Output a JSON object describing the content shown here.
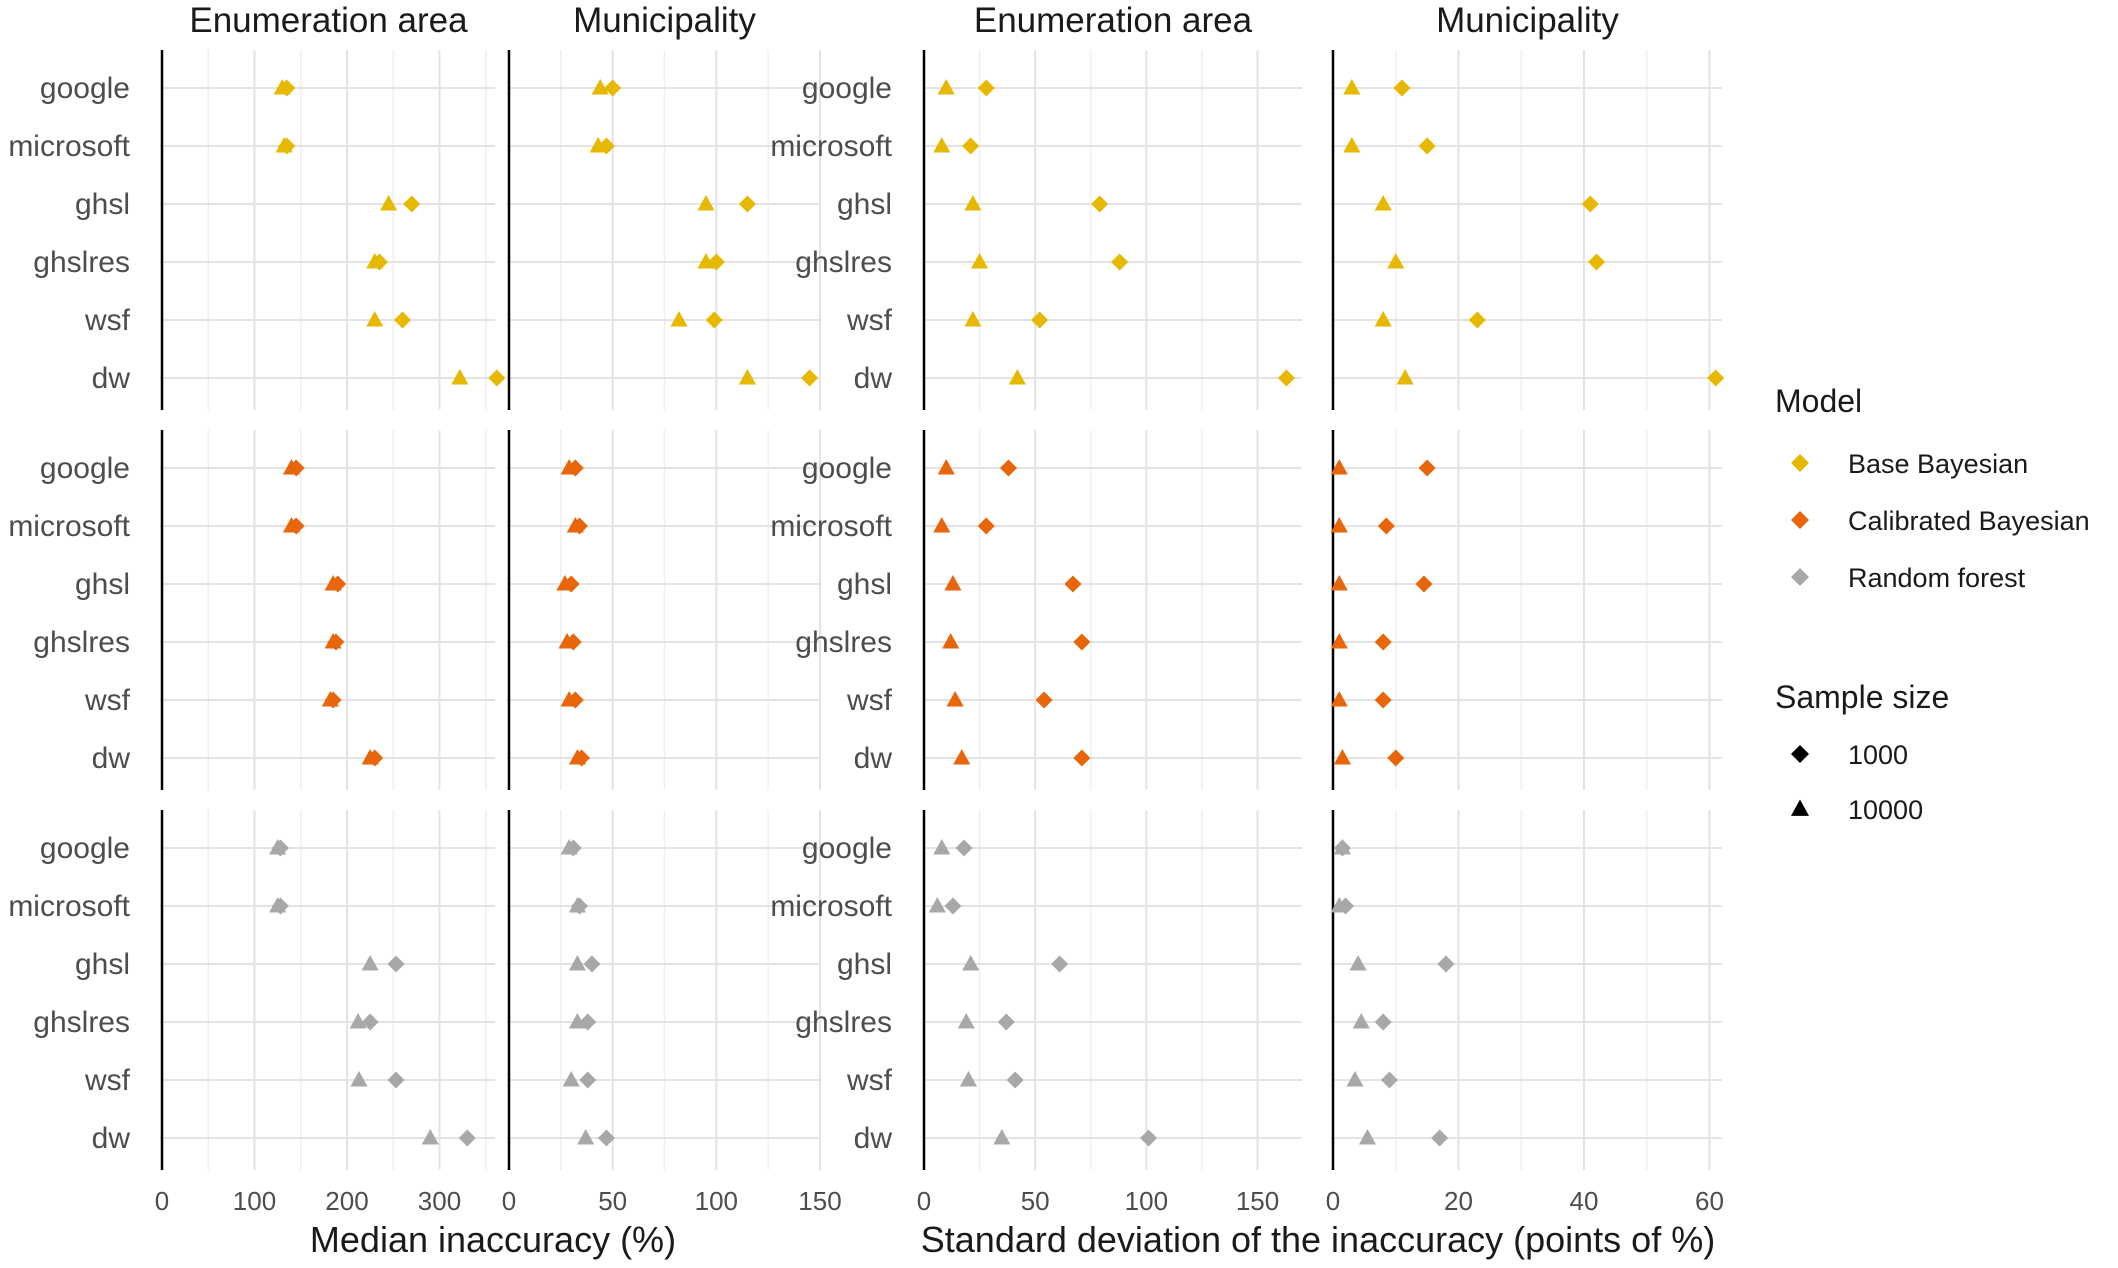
{
  "chart_data": {
    "type": "scatter",
    "rows": [
      "google",
      "microsoft",
      "ghsl",
      "ghslres",
      "wsf",
      "dw"
    ],
    "x_titles": {
      "left": "Median inaccuracy (%)",
      "right": "Standard deviation of the inaccuracy (points of %)"
    },
    "legend": {
      "model_title": "Model",
      "models": [
        {
          "name": "Base Bayesian",
          "color": "#E7B800"
        },
        {
          "name": "Calibrated Bayesian",
          "color": "#E8650A"
        },
        {
          "name": "Random forest",
          "color": "#A8A8A8"
        }
      ],
      "size_title": "Sample size",
      "sizes": [
        {
          "label": "1000",
          "shape": "diamond"
        },
        {
          "label": "10000",
          "shape": "triangle"
        }
      ]
    },
    "panels": [
      {
        "strip": "Enumeration area",
        "metric": "median",
        "xlim": [
          0,
          360
        ],
        "ticks": [
          0,
          100,
          200,
          300
        ],
        "tick_labels": [
          "0",
          "100",
          "200",
          "300"
        ],
        "values": {
          "Base Bayesian": {
            "1000": [
              135,
              135,
              270,
              235,
              260,
              362
            ],
            "10000": [
              130,
              132,
              245,
              230,
              230,
              322
            ]
          },
          "Calibrated Bayesian": {
            "1000": [
              145,
              145,
              190,
              188,
              185,
              230
            ],
            "10000": [
              140,
              140,
              185,
              185,
              182,
              225
            ]
          },
          "Random forest": {
            "1000": [
              128,
              128,
              253,
              225,
              253,
              330
            ],
            "10000": [
              125,
              125,
              225,
              212,
              213,
              290
            ]
          }
        }
      },
      {
        "strip": "Municipality",
        "metric": "median",
        "xlim": [
          0,
          150
        ],
        "ticks": [
          0,
          50,
          100,
          150
        ],
        "tick_labels": [
          "0",
          "50",
          "100",
          "150"
        ],
        "values": {
          "Base Bayesian": {
            "1000": [
              50,
              47,
              115,
              100,
              99,
              145
            ],
            "10000": [
              44,
              43,
              95,
              95,
              82,
              115
            ]
          },
          "Calibrated Bayesian": {
            "1000": [
              32,
              34,
              30,
              31,
              32,
              35
            ],
            "10000": [
              29,
              32,
              27,
              28,
              29,
              33
            ]
          },
          "Random forest": {
            "1000": [
              31,
              34,
              40,
              38,
              38,
              47
            ],
            "10000": [
              29,
              33,
              33,
              33,
              30,
              37
            ]
          }
        }
      },
      {
        "strip": "Enumeration area",
        "metric": "sd",
        "xlim": [
          0,
          170
        ],
        "ticks": [
          0,
          50,
          100,
          150
        ],
        "tick_labels": [
          "0",
          "50",
          "100",
          "150"
        ],
        "values": {
          "Base Bayesian": {
            "1000": [
              28,
              21,
              79,
              88,
              52,
              163
            ],
            "10000": [
              10,
              8,
              22,
              25,
              22,
              42
            ]
          },
          "Calibrated Bayesian": {
            "1000": [
              38,
              28,
              67,
              71,
              54,
              71
            ],
            "10000": [
              10,
              8,
              13,
              12,
              14,
              17
            ]
          },
          "Random forest": {
            "1000": [
              18,
              13,
              61,
              37,
              41,
              101
            ],
            "10000": [
              8,
              6,
              21,
              19,
              20,
              35
            ]
          }
        }
      },
      {
        "strip": "Municipality",
        "metric": "sd",
        "xlim": [
          0,
          62
        ],
        "ticks": [
          0,
          20,
          40,
          60
        ],
        "tick_labels": [
          "0",
          "20",
          "40",
          "60"
        ],
        "values": {
          "Base Bayesian": {
            "1000": [
              11,
              15,
              41,
              42,
              23,
              61
            ],
            "10000": [
              3,
              3,
              8,
              10,
              8,
              11.5
            ]
          },
          "Calibrated Bayesian": {
            "1000": [
              15,
              8.5,
              14.5,
              8,
              8,
              10
            ],
            "10000": [
              1,
              1,
              1,
              1,
              1,
              1.5
            ]
          },
          "Random forest": {
            "1000": [
              1.5,
              2,
              18,
              8,
              9,
              17
            ],
            "10000": [
              1.5,
              1,
              4,
              4.5,
              3.5,
              5.5
            ]
          }
        }
      }
    ]
  }
}
